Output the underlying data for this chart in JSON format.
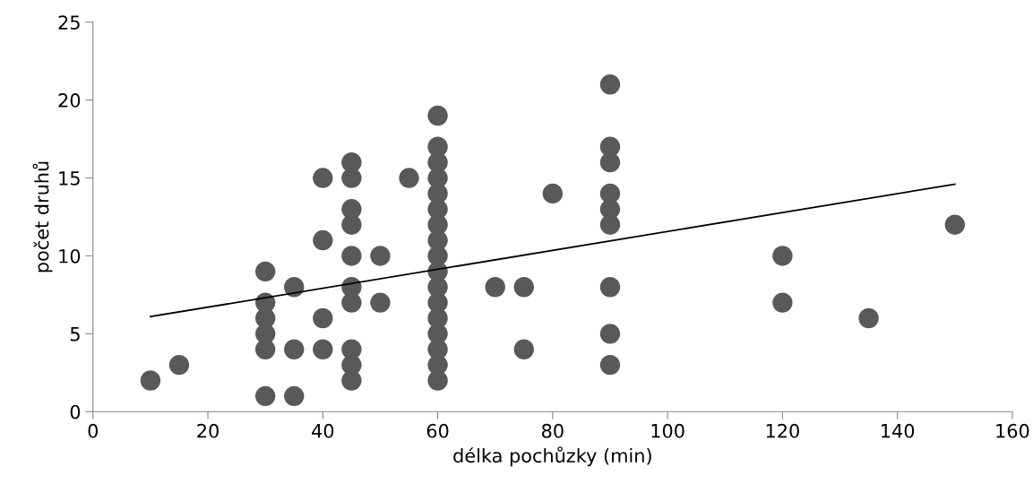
{
  "chart_data": {
    "type": "scatter",
    "xlabel": "délka pochůzky (min)",
    "ylabel": "počet druhů",
    "xlim": [
      0,
      160
    ],
    "xticks": [
      0,
      20,
      40,
      60,
      80,
      100,
      120,
      140,
      160
    ],
    "ylim": [
      0,
      25
    ],
    "yticks": [
      0,
      5,
      10,
      15,
      20,
      25
    ],
    "grid": false,
    "legend": false,
    "marker": "circle",
    "series": [
      {
        "color": "#595959",
        "x": [
          10,
          15,
          30,
          30,
          30,
          30,
          30,
          30,
          35,
          35,
          35,
          40,
          40,
          40,
          40,
          45,
          45,
          45,
          45,
          45,
          45,
          45,
          45,
          45,
          45,
          50,
          50,
          55,
          60,
          60,
          60,
          60,
          60,
          60,
          60,
          60,
          60,
          60,
          60,
          60,
          60,
          60,
          60,
          60,
          60,
          70,
          75,
          75,
          80,
          90,
          90,
          90,
          90,
          90,
          90,
          90,
          90,
          90,
          120,
          120,
          135,
          150
        ],
        "values": [
          2,
          3,
          9,
          7,
          6,
          5,
          4,
          1,
          8,
          4,
          1,
          15,
          11,
          6,
          4,
          16,
          15,
          13,
          12,
          10,
          8,
          7,
          4,
          3,
          2,
          10,
          7,
          15,
          19,
          17,
          16,
          15,
          14,
          13,
          12,
          11,
          10,
          9,
          8,
          7,
          6,
          5,
          4,
          3,
          2,
          8,
          8,
          4,
          14,
          21,
          17,
          16,
          14,
          13,
          12,
          8,
          5,
          3,
          10,
          7,
          6,
          12
        ]
      },
      {
        "type": "line",
        "color": "#000000",
        "marker": "none",
        "x": [
          10,
          150
        ],
        "values": [
          6.1,
          14.6
        ]
      }
    ]
  }
}
